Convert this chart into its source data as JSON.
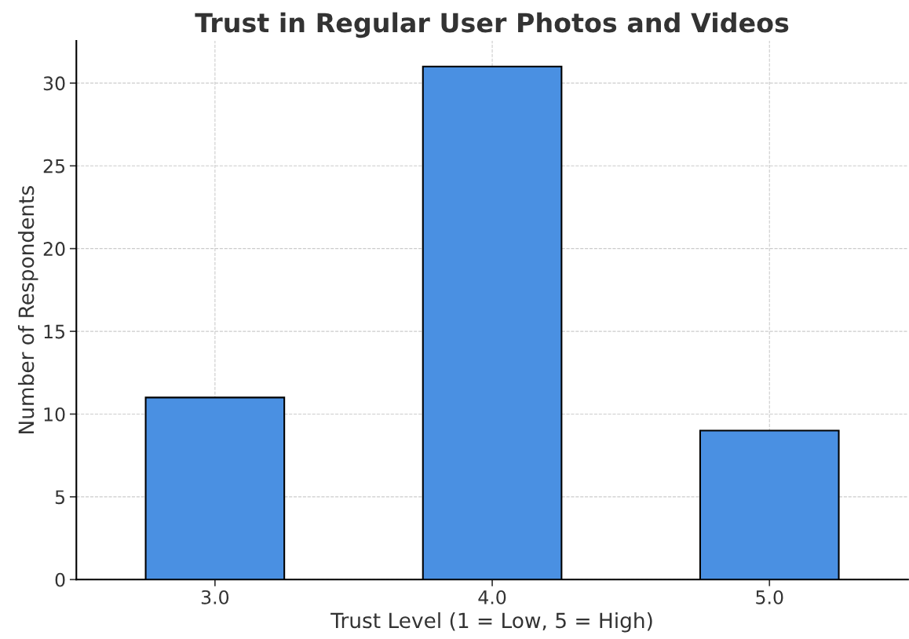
{
  "chart_data": {
    "type": "bar",
    "title": "Trust in Regular User Photos and Videos",
    "xlabel": "Trust Level (1 = Low, 5 = High)",
    "ylabel": "Number of Respondents",
    "categories": [
      "3.0",
      "4.0",
      "5.0"
    ],
    "values": [
      11,
      31,
      9
    ],
    "color": "#4a90e2",
    "ylim": [
      0,
      32.55
    ],
    "yticks": [
      0,
      5,
      10,
      15,
      20,
      25,
      30
    ],
    "grid": true
  }
}
